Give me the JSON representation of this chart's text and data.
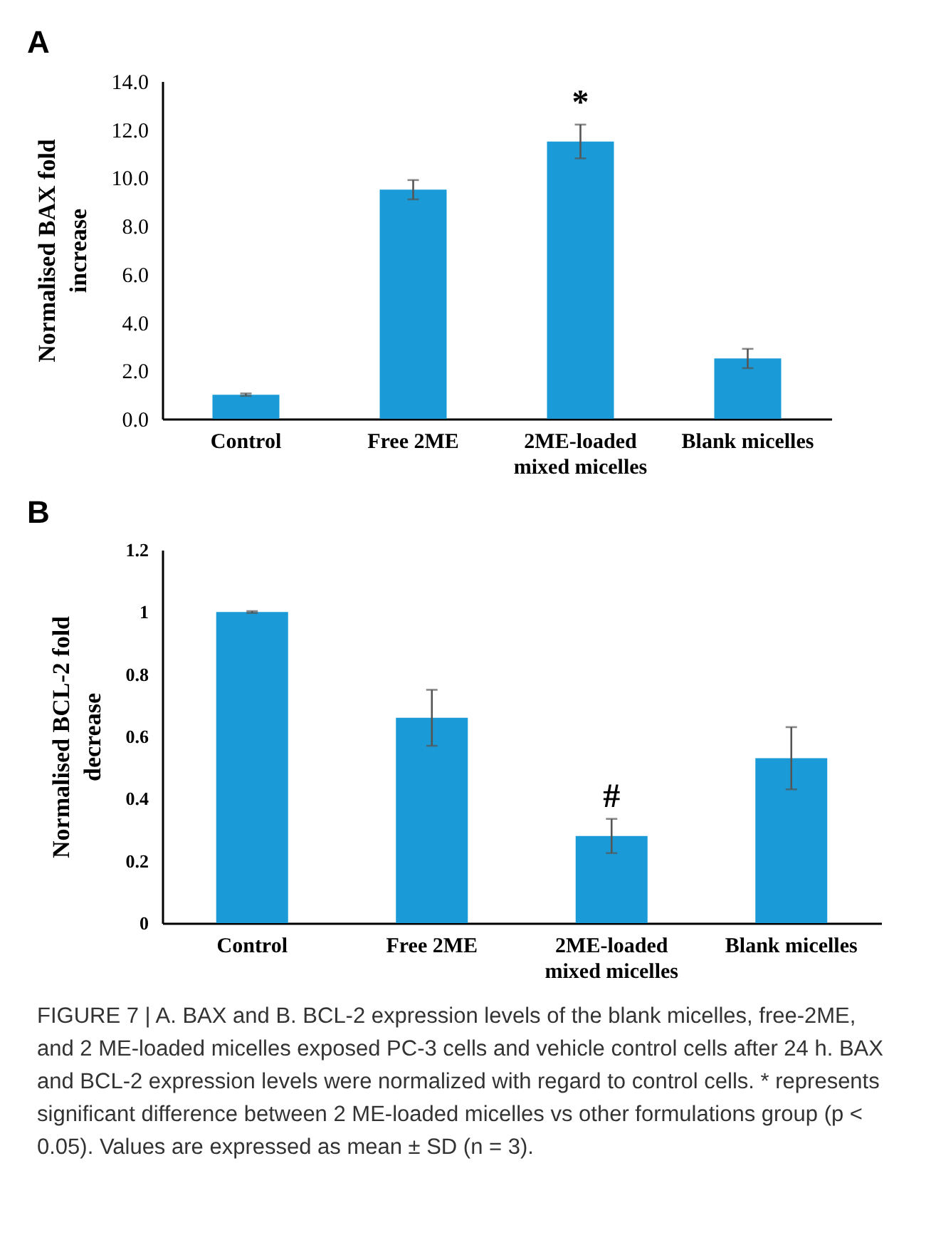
{
  "chart_data": [
    {
      "type": "bar",
      "title": "A",
      "ylabel": "Normalised BAX fold increase",
      "categories": [
        "Control",
        "Free 2ME",
        "2ME-loaded\nmixed micelles",
        "Blank micelles"
      ],
      "values": [
        1.0,
        9.5,
        11.5,
        2.5
      ],
      "errors": [
        0.05,
        0.4,
        0.7,
        0.4
      ],
      "color": "#1a9bd7",
      "ylim": [
        0,
        14
      ],
      "yticks": [
        {
          "value": 0,
          "label": "0.0"
        },
        {
          "value": 2,
          "label": "2.0"
        },
        {
          "value": 4,
          "label": "4.0"
        },
        {
          "value": 6,
          "label": "6.0"
        },
        {
          "value": 8,
          "label": "8.0"
        },
        {
          "value": 10,
          "label": "10.0"
        },
        {
          "value": 12,
          "label": "12.0"
        },
        {
          "value": 14,
          "label": "14.0"
        }
      ],
      "annotations": [
        {
          "text": "*",
          "x": "2ME-loaded\nmixed micelles",
          "y": 12.5
        }
      ]
    },
    {
      "type": "bar",
      "title": "B",
      "ylabel": "Normalised BCL-2 fold decrease",
      "categories": [
        "Control",
        "Free 2ME",
        "2ME-loaded\nmixed micelles",
        "Blank micelles"
      ],
      "values": [
        1.0,
        0.66,
        0.28,
        0.53
      ],
      "errors": [
        0.003,
        0.09,
        0.055,
        0.1
      ],
      "color": "#1a9bd7",
      "ylim": [
        0,
        1.2
      ],
      "yticks": [
        0,
        0.2,
        0.4,
        0.6,
        0.8,
        1,
        1.2
      ],
      "annotations": [
        {
          "text": "#",
          "x": "2ME-loaded\nmixed micelles",
          "y": 0.36
        },
        "FIGURE 7 | A. BAX and B. BCL-2 expression levels of the blank micelles, free-2ME, and 2 ME-loaded micelles exposed PC-3 cells and vehicle control cells after 24 h. BAX and BCL-2 expression levels were normalized with regard to control cells. * represents significant difference between 2 ME-loaded micelles vs other formulations group (p < 0.05). Values are expressed as mean ± SD (n = 3)."
      ]
    }
  ]
}
